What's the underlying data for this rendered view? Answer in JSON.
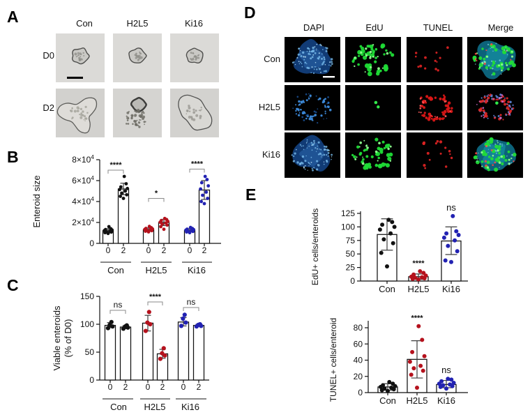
{
  "panel_a": {
    "label": "A",
    "columns": [
      "Con",
      "H2L5",
      "Ki16"
    ],
    "rows": [
      "D0",
      "D2"
    ],
    "cells": [
      {
        "row": "D0",
        "col": "Con",
        "style": "bf-small",
        "scalebar": true
      },
      {
        "row": "D0",
        "col": "H2L5",
        "style": "bf-small"
      },
      {
        "row": "D0",
        "col": "Ki16",
        "style": "bf-small"
      },
      {
        "row": "D2",
        "col": "Con",
        "style": "bf-branched"
      },
      {
        "row": "D2",
        "col": "H2L5",
        "style": "bf-ring-debris"
      },
      {
        "row": "D2",
        "col": "Ki16",
        "style": "bf-lobed"
      }
    ]
  },
  "panel_b": {
    "label": "B"
  },
  "panel_c": {
    "label": "C"
  },
  "panel_d": {
    "label": "D",
    "columns": [
      "DAPI",
      "EdU",
      "TUNEL",
      "Merge"
    ],
    "rows": [
      "Con",
      "H2L5",
      "Ki16"
    ],
    "cells": [
      {
        "row": "Con",
        "col": "DAPI",
        "style": "dapi-blob",
        "scalebar": true
      },
      {
        "row": "Con",
        "col": "EdU",
        "style": "edu-dense"
      },
      {
        "row": "Con",
        "col": "TUNEL",
        "style": "tunel-sparse"
      },
      {
        "row": "Con",
        "col": "Merge",
        "style": "merge-grow"
      },
      {
        "row": "H2L5",
        "col": "DAPI",
        "style": "dapi-speckle-ring"
      },
      {
        "row": "H2L5",
        "col": "EdU",
        "style": "edu-single"
      },
      {
        "row": "H2L5",
        "col": "TUNEL",
        "style": "tunel-dense"
      },
      {
        "row": "H2L5",
        "col": "Merge",
        "style": "merge-apop"
      },
      {
        "row": "Ki16",
        "col": "DAPI",
        "style": "dapi-blob"
      },
      {
        "row": "Ki16",
        "col": "EdU",
        "style": "edu-dense"
      },
      {
        "row": "Ki16",
        "col": "TUNEL",
        "style": "tunel-medium"
      },
      {
        "row": "Ki16",
        "col": "Merge",
        "style": "merge-grow"
      }
    ]
  },
  "panel_e": {
    "label": "E"
  },
  "colors": {
    "con": "#111111",
    "h2l5": "#b5121d",
    "ki16": "#2222b2",
    "bar_fill": "#ffffff",
    "bar_stroke": "#111111",
    "error": "#3d3d3d",
    "bracket": "#8a8a8a",
    "axis": "#111111"
  },
  "chart_data": [
    {
      "id": "chart-b-svg",
      "type": "bar",
      "panel": "B",
      "ylabel": "Enteroid size",
      "ylim": [
        0,
        80000
      ],
      "yticks": [
        0,
        20000,
        40000,
        60000,
        80000
      ],
      "ytick_labels": [
        "0",
        "2×10^4",
        "4×10^4",
        "6×10^4",
        "8×10^4"
      ],
      "grouped": true,
      "groups": [
        {
          "label": "Con",
          "sig": {
            "label": "****",
            "y": 70000
          },
          "bars": [
            {
              "tick": "0",
              "mean": 12000,
              "err_lo": 10000,
              "err_hi": 14000,
              "color": "con",
              "points": [
                9500,
                10200,
                10800,
                11200,
                11800,
                12200,
                12800,
                13200,
                14000,
                16000
              ]
            },
            {
              "tick": "2",
              "mean": 52000,
              "err_lo": 46500,
              "err_hi": 57500,
              "color": "con",
              "points": [
                43000,
                45000,
                46500,
                48000,
                50000,
                51500,
                52500,
                54000,
                57000,
                64000
              ]
            }
          ]
        },
        {
          "label": "H2L5",
          "sig": {
            "label": "*",
            "y": 43000
          },
          "bars": [
            {
              "tick": "0",
              "mean": 13000,
              "err_lo": 11500,
              "err_hi": 14800,
              "color": "h2l5",
              "points": [
                11000,
                11600,
                12100,
                12600,
                13000,
                13400,
                13800,
                14300,
                15000,
                16200
              ]
            },
            {
              "tick": "2",
              "mean": 20000,
              "err_lo": 17000,
              "err_hi": 23000,
              "color": "h2l5",
              "points": [
                13500,
                16000,
                17500,
                18500,
                19500,
                20200,
                21000,
                21800,
                22800,
                23800
              ]
            }
          ]
        },
        {
          "label": "Ki16",
          "sig": {
            "label": "****",
            "y": 71000
          },
          "bars": [
            {
              "tick": "0",
              "mean": 12400,
              "err_lo": 11000,
              "err_hi": 14000,
              "color": "ki16",
              "points": [
                10200,
                10900,
                11400,
                11900,
                12300,
                12700,
                13100,
                13600,
                14200,
                15200
              ]
            },
            {
              "tick": "2",
              "mean": 51000,
              "err_lo": 42000,
              "err_hi": 60000,
              "color": "ki16",
              "points": [
                38000,
                40000,
                43000,
                46000,
                49000,
                52000,
                55000,
                58000,
                61000,
                64000
              ]
            }
          ]
        }
      ]
    },
    {
      "id": "chart-c-svg",
      "type": "bar",
      "panel": "C",
      "ylabel_lines": [
        "Viable enteroids",
        "(% of D0)"
      ],
      "ylim": [
        0,
        150
      ],
      "yticks": [
        0,
        50,
        100,
        150
      ],
      "ytick_labels": [
        "0",
        "50",
        "100",
        "150"
      ],
      "grouped": true,
      "groups": [
        {
          "label": "Con",
          "sig": {
            "label": "ns",
            "y": 125
          },
          "bars": [
            {
              "tick": "0",
              "mean": 98,
              "err_lo": 94,
              "err_hi": 103,
              "color": "con",
              "points": [
                93,
                96,
                99,
                104
              ]
            },
            {
              "tick": "2",
              "mean": 95,
              "err_lo": 92,
              "err_hi": 97,
              "color": "con",
              "points": [
                92,
                94,
                96,
                98
              ]
            }
          ]
        },
        {
          "label": "H2L5",
          "sig": {
            "label": "****",
            "y": 140
          },
          "bars": [
            {
              "tick": "0",
              "mean": 102,
              "err_lo": 88,
              "err_hi": 116,
              "color": "h2l5",
              "points": [
                88,
                100,
                103,
                122
              ]
            },
            {
              "tick": "2",
              "mean": 47,
              "err_lo": 39,
              "err_hi": 55,
              "color": "h2l5",
              "points": [
                38,
                44,
                48,
                57
              ]
            }
          ]
        },
        {
          "label": "Ki16",
          "sig": {
            "label": "ns",
            "y": 130
          },
          "bars": [
            {
              "tick": "0",
              "mean": 104,
              "err_lo": 97,
              "err_hi": 112,
              "color": "ki16",
              "points": [
                97,
                103,
                110,
                117
              ]
            },
            {
              "tick": "2",
              "mean": 98,
              "err_lo": 96,
              "err_hi": 100,
              "color": "ki16",
              "points": [
                96,
                97,
                99,
                100
              ]
            }
          ]
        }
      ]
    },
    {
      "id": "chart-e1-svg",
      "type": "bar",
      "panel": "E",
      "ylabel": "EdU+ cells/enteroids",
      "ylim": [
        0,
        125
      ],
      "yticks": [
        0,
        25,
        50,
        75,
        100,
        125
      ],
      "ytick_labels": [
        "0",
        "25",
        "50",
        "75",
        "100",
        "125"
      ],
      "grouped": false,
      "groups": [
        {
          "label": "Con",
          "bars": [
            {
              "tick": "",
              "mean": 86,
              "err_lo": 57,
              "err_hi": 115,
              "color": "con",
              "points": [
                27,
                52,
                70,
                77,
                88,
                95,
                100,
                104,
                109,
                113
              ]
            }
          ]
        },
        {
          "label": "H2L5",
          "sig": {
            "label": "****",
            "y": 18
          },
          "bars": [
            {
              "tick": "",
              "mean": 8,
              "err_lo": 3,
              "err_hi": 13,
              "color": "h2l5",
              "points": [
                3,
                4,
                5,
                6,
                7,
                8,
                10,
                12,
                15,
                18
              ]
            }
          ]
        },
        {
          "label": "Ki16",
          "sig": {
            "label": "ns",
            "y": 120
          },
          "bars": [
            {
              "tick": "",
              "mean": 74,
              "err_lo": 49,
              "err_hi": 100,
              "color": "ki16",
              "points": [
                35,
                38,
                55,
                65,
                75,
                80,
                85,
                88,
                92,
                120
              ]
            }
          ]
        }
      ]
    },
    {
      "id": "chart-e2-svg",
      "type": "bar",
      "panel": "E",
      "ylabel": "TUNEL+ cells/enteroid",
      "ylim": [
        0,
        80
      ],
      "yticks": [
        0,
        20,
        40,
        60,
        80
      ],
      "ytick_labels": [
        "0",
        "20",
        "40",
        "60",
        "80"
      ],
      "grouped": false,
      "groups": [
        {
          "label": "Con",
          "bars": [
            {
              "tick": "",
              "mean": 7,
              "err_lo": 3,
              "err_hi": 11,
              "color": "con",
              "points": [
                2,
                3,
                4,
                5,
                6,
                7,
                8,
                9,
                11,
                13
              ]
            }
          ]
        },
        {
          "label": "H2L5",
          "sig": {
            "label": "****",
            "y": 82
          },
          "bars": [
            {
              "tick": "",
              "mean": 41,
              "err_lo": 18,
              "err_hi": 64,
              "color": "h2l5",
              "points": [
                6,
                22,
                27,
                30,
                33,
                38,
                45,
                50,
                65,
                82
              ]
            }
          ]
        },
        {
          "label": "Ki16",
          "sig": {
            "label": "ns",
            "y": 17
          },
          "bars": [
            {
              "tick": "",
              "mean": 10,
              "err_lo": 6,
              "err_hi": 15,
              "color": "ki16",
              "points": [
                5,
                7,
                8,
                9,
                10,
                11,
                12,
                14,
                16,
                17
              ]
            }
          ]
        }
      ]
    }
  ]
}
